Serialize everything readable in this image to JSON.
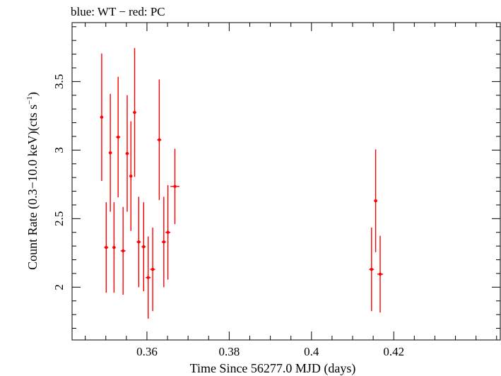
{
  "chart_data": {
    "type": "scatter",
    "title": "blue: WT − red: PC",
    "xlabel": "Time Since 56277.0 MJD (days)",
    "ylabel_main": "Count Rate (0.3−10.0 keV)(cts s",
    "ylabel_sup": "−1",
    "ylabel_end": ")",
    "xlim": [
      0.3418,
      0.4459
    ],
    "ylim": [
      1.615,
      3.93
    ],
    "xticks": [
      0.36,
      0.38,
      0.4,
      0.42
    ],
    "xtick_labels": [
      "0.36",
      "0.38",
      "0.4",
      "0.42"
    ],
    "yticks": [
      2,
      2.5,
      3,
      3.5
    ],
    "ytick_labels": [
      "2",
      "2.5",
      "3",
      "3.5"
    ],
    "grid": false,
    "series": [
      {
        "name": "PC",
        "color": "#ff0000",
        "points": [
          {
            "x": 0.349,
            "y": 3.24,
            "yerr": 0.465,
            "xerr": 0.0004
          },
          {
            "x": 0.3501,
            "y": 2.29,
            "yerr": 0.33,
            "xerr": 0.0005
          },
          {
            "x": 0.3511,
            "y": 2.98,
            "yerr": 0.43,
            "xerr": 0.0004
          },
          {
            "x": 0.352,
            "y": 2.29,
            "yerr": 0.33,
            "xerr": 0.0004
          },
          {
            "x": 0.353,
            "y": 3.095,
            "yerr": 0.44,
            "xerr": 0.0005
          },
          {
            "x": 0.3542,
            "y": 2.265,
            "yerr": 0.32,
            "xerr": 0.0006
          },
          {
            "x": 0.3552,
            "y": 2.975,
            "yerr": 0.425,
            "xerr": 0.0004
          },
          {
            "x": 0.3561,
            "y": 2.81,
            "yerr": 0.4,
            "xerr": 0.0003
          },
          {
            "x": 0.357,
            "y": 3.275,
            "yerr": 0.47,
            "xerr": 0.0004
          },
          {
            "x": 0.358,
            "y": 2.33,
            "yerr": 0.33,
            "xerr": 0.0005
          },
          {
            "x": 0.3592,
            "y": 2.295,
            "yerr": 0.325,
            "xerr": 0.0005
          },
          {
            "x": 0.3603,
            "y": 2.07,
            "yerr": 0.3,
            "xerr": 0.0006
          },
          {
            "x": 0.3614,
            "y": 2.13,
            "yerr": 0.305,
            "xerr": 0.0006
          },
          {
            "x": 0.363,
            "y": 3.075,
            "yerr": 0.44,
            "xerr": 0.0005
          },
          {
            "x": 0.3641,
            "y": 2.33,
            "yerr": 0.33,
            "xerr": 0.0005
          },
          {
            "x": 0.3651,
            "y": 2.4,
            "yerr": 0.345,
            "xerr": 0.0006
          },
          {
            "x": 0.3668,
            "y": 2.735,
            "yerr": 0.275,
            "xerr": 0.0011
          },
          {
            "x": 0.4146,
            "y": 2.13,
            "yerr": 0.305,
            "xerr": 0.0006
          },
          {
            "x": 0.4156,
            "y": 2.63,
            "yerr": 0.375,
            "xerr": 0.0004
          },
          {
            "x": 0.4167,
            "y": 2.095,
            "yerr": 0.28,
            "xerr": 0.0007
          }
        ]
      }
    ]
  }
}
